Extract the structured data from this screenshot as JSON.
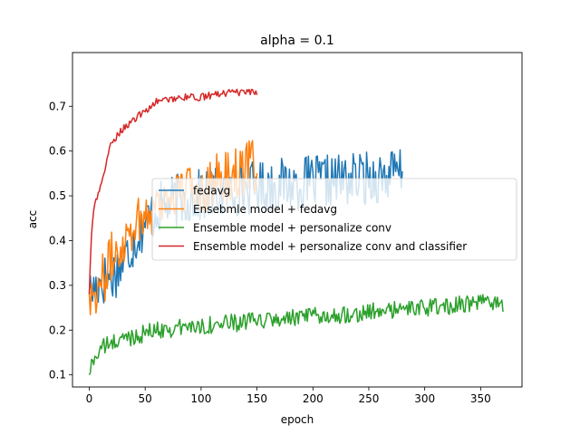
{
  "chart_data": {
    "type": "line",
    "title": "alpha = 0.1",
    "xlabel": "epoch",
    "ylabel": "acc",
    "xlim": [
      -15,
      387
    ],
    "ylim": [
      0.073,
      0.82
    ],
    "xticks": [
      0,
      50,
      100,
      150,
      200,
      250,
      300,
      350
    ],
    "yticks": [
      0.1,
      0.2,
      0.3,
      0.4,
      0.5,
      0.6,
      0.7
    ],
    "grid": false,
    "legend_position": "center-right",
    "series": [
      {
        "name": "fedavg",
        "color": "#1f77b4",
        "epochs": 281,
        "anchors": [
          [
            0,
            0.28
          ],
          [
            10,
            0.31
          ],
          [
            20,
            0.32
          ],
          [
            30,
            0.35
          ],
          [
            40,
            0.4
          ],
          [
            50,
            0.44
          ],
          [
            60,
            0.47
          ],
          [
            80,
            0.49
          ],
          [
            100,
            0.5
          ],
          [
            150,
            0.52
          ],
          [
            200,
            0.53
          ],
          [
            250,
            0.54
          ],
          [
            280,
            0.55
          ]
        ],
        "noise": 0.06,
        "max": 0.67
      },
      {
        "name": "Ensebmle model + fedavg",
        "color": "#ff7f0e",
        "epochs": 151,
        "anchors": [
          [
            0,
            0.28
          ],
          [
            10,
            0.3
          ],
          [
            20,
            0.36
          ],
          [
            30,
            0.4
          ],
          [
            40,
            0.44
          ],
          [
            50,
            0.46
          ],
          [
            70,
            0.5
          ],
          [
            100,
            0.52
          ],
          [
            130,
            0.55
          ],
          [
            150,
            0.57
          ]
        ],
        "noise": 0.06,
        "max": 0.67
      },
      {
        "name": "Ensemble model + personalize conv",
        "color": "#2ca02c",
        "epochs": 371,
        "anchors": [
          [
            0,
            0.1
          ],
          [
            3,
            0.13
          ],
          [
            10,
            0.16
          ],
          [
            30,
            0.18
          ],
          [
            60,
            0.2
          ],
          [
            100,
            0.21
          ],
          [
            150,
            0.22
          ],
          [
            200,
            0.23
          ],
          [
            250,
            0.24
          ],
          [
            300,
            0.25
          ],
          [
            350,
            0.26
          ],
          [
            370,
            0.26
          ]
        ],
        "noise": 0.02,
        "max": 0.33
      },
      {
        "name": "Ensemble model + personalize conv and classifier",
        "color": "#d62728",
        "epochs": 151,
        "anchors": [
          [
            0,
            0.28
          ],
          [
            2,
            0.42
          ],
          [
            5,
            0.48
          ],
          [
            10,
            0.52
          ],
          [
            15,
            0.57
          ],
          [
            20,
            0.62
          ],
          [
            30,
            0.65
          ],
          [
            40,
            0.67
          ],
          [
            50,
            0.69
          ],
          [
            60,
            0.71
          ],
          [
            80,
            0.72
          ],
          [
            100,
            0.72
          ],
          [
            120,
            0.73
          ],
          [
            150,
            0.73
          ]
        ],
        "noise": 0.008,
        "max": 0.74
      }
    ]
  }
}
